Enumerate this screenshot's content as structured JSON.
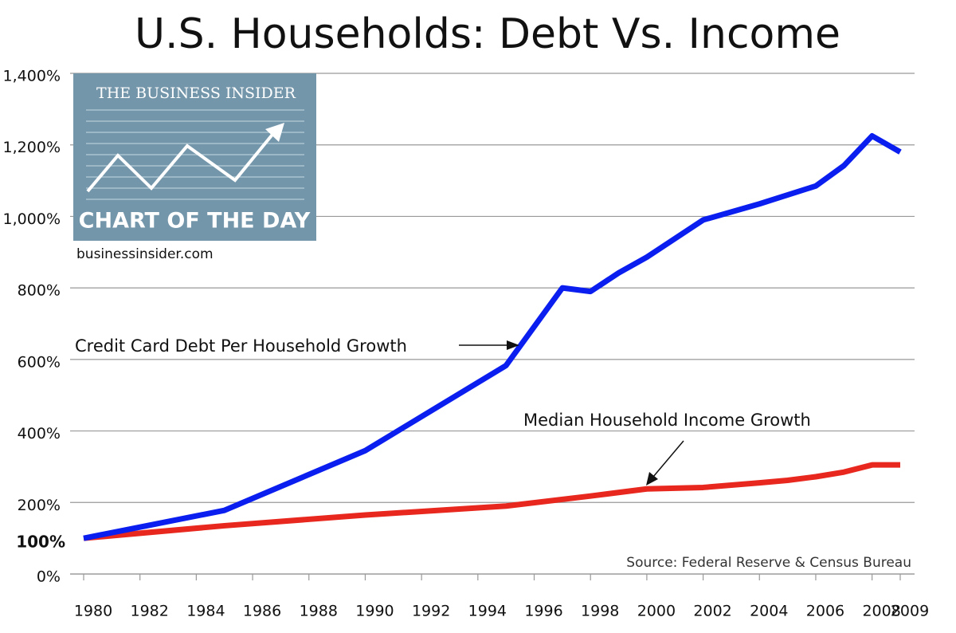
{
  "chart_data": {
    "type": "line",
    "title": "U.S. Households: Debt Vs. Income",
    "source": "Source: Federal Reserve & Census Bureau",
    "logo": {
      "brand": "THE BUSINESS INSIDER",
      "tagline": "CHART OF THE DAY",
      "url": "businessinsider.com"
    },
    "xlim": [
      1980,
      2009
    ],
    "xticks": [
      1980,
      1982,
      1984,
      1986,
      1988,
      1990,
      1992,
      1994,
      1996,
      1998,
      2000,
      2002,
      2004,
      2006,
      2008,
      2009
    ],
    "ylim": [
      0,
      1400
    ],
    "yticks": [
      {
        "value": 0,
        "label": "0%"
      },
      {
        "value": 200,
        "label": "200%"
      },
      {
        "value": 400,
        "label": "400%"
      },
      {
        "value": 600,
        "label": "600%"
      },
      {
        "value": 800,
        "label": "800%"
      },
      {
        "value": 1000,
        "label": "1,000%"
      },
      {
        "value": 1200,
        "label": "1,200%"
      },
      {
        "value": 1400,
        "label": "1,400%"
      }
    ],
    "baseline_tick": {
      "value": 100,
      "label": "100%"
    },
    "grid": true,
    "series": [
      {
        "name": "Credit Card Debt Per Household Growth",
        "color": "#0a1ef0",
        "x": [
          1980,
          1985,
          1990,
          1995,
          1997,
          1998,
          1999,
          2000,
          2002,
          2004,
          2006,
          2007,
          2008,
          2009
        ],
        "values": [
          100,
          178,
          345,
          583,
          800,
          790,
          842,
          886,
          990,
          1035,
          1085,
          1142,
          1225,
          1180
        ]
      },
      {
        "name": "Median Household Income Growth",
        "color": "#e8281e",
        "x": [
          1980,
          1985,
          1990,
          1995,
          1998,
          2000,
          2002,
          2004,
          2005,
          2006,
          2007,
          2008,
          2009
        ],
        "values": [
          100,
          135,
          165,
          190,
          218,
          238,
          242,
          255,
          262,
          272,
          285,
          305,
          305
        ]
      }
    ]
  }
}
